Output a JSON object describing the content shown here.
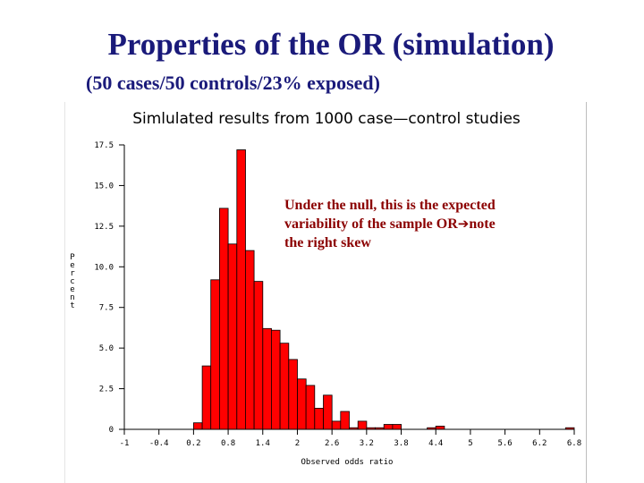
{
  "slide": {
    "title": "Properties of the OR (simulation)",
    "subtitle": "(50 cases/50 controls/23% exposed)",
    "callout": {
      "line1": "Under the null, this is the expected",
      "line2_a": "variability of the sample OR",
      "arrow": "➔",
      "line2_b": "note",
      "line3": "the right skew"
    }
  },
  "colors": {
    "title": "#1a1a7a",
    "bar_fill": "#ff0000",
    "bar_stroke": "#000000",
    "callout": "#8b0000"
  },
  "chart_data": {
    "type": "bar",
    "title": "Simlulated results from 1000 case—control studies",
    "xlabel": "Observed odds ratio",
    "ylabel": "Percent",
    "xlim": [
      -1,
      6.8
    ],
    "ylim": [
      0,
      17.5
    ],
    "x_ticks": [
      -1,
      -0.4,
      0.2,
      0.8,
      1.4,
      2,
      2.6,
      3.2,
      3.8,
      4.4,
      5,
      5.6,
      6.2,
      6.8
    ],
    "x_tick_labels": [
      "-1",
      "-0.4",
      "0.2",
      "0.8",
      "1.4",
      "2",
      "2.6",
      "3.2",
      "3.8",
      "4.4",
      "5",
      "5.6",
      "6.2",
      "6.8"
    ],
    "y_ticks": [
      0,
      2.5,
      5,
      7.5,
      10,
      12.5,
      15,
      17.5
    ],
    "y_tick_labels": [
      "0",
      "2.5",
      "5.0",
      "7.5",
      "10.0",
      "12.5",
      "15.0",
      "17.5"
    ],
    "bin_width": 0.15,
    "bins": [
      {
        "x": 0.2,
        "value": 0.4
      },
      {
        "x": 0.35,
        "value": 3.9
      },
      {
        "x": 0.5,
        "value": 9.2
      },
      {
        "x": 0.65,
        "value": 13.6
      },
      {
        "x": 0.8,
        "value": 11.4
      },
      {
        "x": 0.95,
        "value": 17.2
      },
      {
        "x": 1.1,
        "value": 11.0
      },
      {
        "x": 1.25,
        "value": 9.1
      },
      {
        "x": 1.4,
        "value": 6.2
      },
      {
        "x": 1.55,
        "value": 6.1
      },
      {
        "x": 1.7,
        "value": 5.3
      },
      {
        "x": 1.85,
        "value": 4.3
      },
      {
        "x": 2.0,
        "value": 3.1
      },
      {
        "x": 2.15,
        "value": 2.7
      },
      {
        "x": 2.3,
        "value": 1.3
      },
      {
        "x": 2.45,
        "value": 2.1
      },
      {
        "x": 2.6,
        "value": 0.5
      },
      {
        "x": 2.75,
        "value": 1.1
      },
      {
        "x": 2.9,
        "value": 0.1
      },
      {
        "x": 3.05,
        "value": 0.5
      },
      {
        "x": 3.2,
        "value": 0.1
      },
      {
        "x": 3.35,
        "value": 0.1
      },
      {
        "x": 3.5,
        "value": 0.3
      },
      {
        "x": 3.65,
        "value": 0.3
      },
      {
        "x": 4.25,
        "value": 0.1
      },
      {
        "x": 4.4,
        "value": 0.2
      },
      {
        "x": 6.65,
        "value": 0.1
      }
    ]
  }
}
